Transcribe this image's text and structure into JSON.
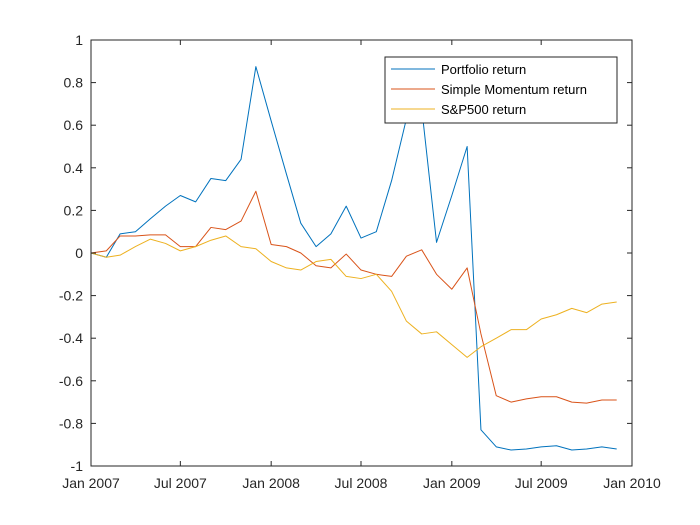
{
  "chart_data": {
    "type": "line",
    "title": "",
    "xlabel": "",
    "ylabel": "",
    "x": [
      "2007-01-01",
      "2007-02-01",
      "2007-03-01",
      "2007-04-01",
      "2007-05-01",
      "2007-06-01",
      "2007-07-01",
      "2007-08-01",
      "2007-09-01",
      "2007-10-01",
      "2007-11-01",
      "2007-12-01",
      "2008-01-01",
      "2008-02-01",
      "2008-03-01",
      "2008-04-01",
      "2008-05-01",
      "2008-06-01",
      "2008-07-01",
      "2008-08-01",
      "2008-09-01",
      "2008-10-01",
      "2008-11-01",
      "2008-12-01",
      "2009-01-01",
      "2009-02-01",
      "2009-03-01",
      "2009-04-01",
      "2009-05-01",
      "2009-06-01",
      "2009-07-01",
      "2009-08-01",
      "2009-09-01",
      "2009-10-01",
      "2009-11-01",
      "2009-12-01"
    ],
    "series": [
      {
        "name": "Portfolio return",
        "color": "#0072BD",
        "values": [
          0,
          -0.02,
          0.09,
          0.1,
          0.16,
          0.22,
          0.27,
          0.24,
          0.35,
          0.34,
          0.44,
          0.875,
          0.62,
          0.37,
          0.14,
          0.03,
          0.09,
          0.22,
          0.07,
          0.1,
          0.34,
          0.63,
          0.68,
          0.05,
          0.27,
          0.5,
          -0.83,
          -0.91,
          -0.925,
          -0.92,
          -0.91,
          -0.905,
          -0.925,
          -0.92,
          -0.91,
          -0.92
        ]
      },
      {
        "name": "Simple Momentum return",
        "color": "#D95319",
        "values": [
          0,
          0.01,
          0.08,
          0.08,
          0.085,
          0.085,
          0.03,
          0.03,
          0.12,
          0.11,
          0.15,
          0.29,
          0.04,
          0.03,
          0,
          -0.06,
          -0.07,
          -0.005,
          -0.08,
          -0.1,
          -0.11,
          -0.015,
          0.015,
          -0.1,
          -0.17,
          -0.07,
          -0.38,
          -0.67,
          -0.7,
          -0.685,
          -0.675,
          -0.675,
          -0.7,
          -0.705,
          -0.69,
          -0.69
        ]
      },
      {
        "name": "S&P500 return",
        "color": "#EDB120",
        "values": [
          0,
          -0.02,
          -0.01,
          0.03,
          0.065,
          0.045,
          0.01,
          0.03,
          0.06,
          0.08,
          0.03,
          0.02,
          -0.04,
          -0.07,
          -0.08,
          -0.04,
          -0.03,
          -0.11,
          -0.12,
          -0.1,
          -0.18,
          -0.32,
          -0.38,
          -0.37,
          -0.43,
          -0.49,
          -0.44,
          -0.4,
          -0.36,
          -0.36,
          -0.31,
          -0.29,
          -0.26,
          -0.28,
          -0.24,
          -0.23
        ]
      }
    ],
    "ylim": [
      -1,
      1
    ],
    "xlim": [
      "2007-01-01",
      "2010-01-01"
    ],
    "yticks": [
      1,
      0.8,
      0.6,
      0.4,
      0.2,
      0,
      -0.2,
      -0.4,
      -0.6,
      -0.8,
      -1
    ],
    "ytick_labels": [
      "1",
      "0.8",
      "0.6",
      "0.4",
      "0.2",
      "0",
      "-0.2",
      "-0.4",
      "-0.6",
      "-0.8",
      "-1"
    ],
    "xticks": [
      "2007-01-01",
      "2007-07-01",
      "2008-01-01",
      "2008-07-01",
      "2009-01-01",
      "2009-07-01",
      "2010-01-01"
    ],
    "xtick_labels": [
      "Jan 2007",
      "Jul 2007",
      "Jan 2008",
      "Jul 2008",
      "Jan 2009",
      "Jul 2009",
      "Jan 2010"
    ],
    "grid": false,
    "legend": {
      "placement": "top-right"
    }
  }
}
